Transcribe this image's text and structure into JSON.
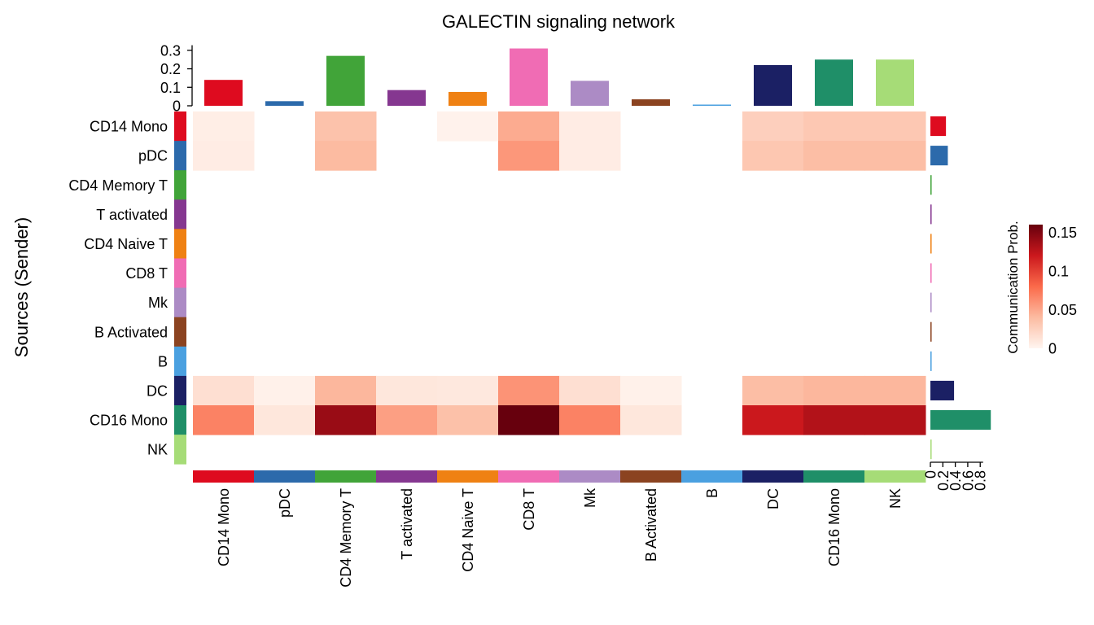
{
  "chart_data": {
    "type": "heatmap",
    "title": "GALECTIN signaling network",
    "ylabel": "Sources (Sender)",
    "legend_title": "Communication Prob.",
    "legend_position": "right",
    "legend_ticks": [
      "0.15",
      "0.1",
      "0.05",
      "0"
    ],
    "value_range": [
      0,
      0.16
    ],
    "colormap": [
      "#fff5f0",
      "#fcbba1",
      "#fb6a4a",
      "#cb181d",
      "#67000d"
    ],
    "rows": [
      "CD14 Mono",
      "pDC",
      "CD4 Memory T",
      "T activated",
      "CD4 Naive T",
      "CD8 T",
      "Mk",
      "B Activated",
      "B",
      "DC",
      "CD16 Mono",
      "NK"
    ],
    "columns": [
      "CD14 Mono",
      "pDC",
      "CD4 Memory T",
      "T activated",
      "CD4 Naive T",
      "CD8 T",
      "Mk",
      "B Activated",
      "B",
      "DC",
      "CD16 Mono",
      "NK"
    ],
    "group_colors": [
      "#de0b1f",
      "#2c6aab",
      "#41a439",
      "#853790",
      "#ef8113",
      "#f06cb4",
      "#ac8bc5",
      "#8b4320",
      "#4aa0e0",
      "#1b2064",
      "#1f8f68",
      "#a6dc77"
    ],
    "matrix": [
      [
        0.005,
        null,
        0.035,
        null,
        0.002,
        0.048,
        0.006,
        null,
        null,
        0.026,
        0.031,
        0.031
      ],
      [
        0.006,
        null,
        0.04,
        null,
        null,
        0.058,
        0.006,
        null,
        null,
        0.032,
        0.038,
        0.038
      ],
      [
        null,
        null,
        null,
        null,
        null,
        null,
        null,
        null,
        null,
        null,
        null,
        null
      ],
      [
        null,
        null,
        null,
        null,
        null,
        null,
        null,
        null,
        null,
        null,
        null,
        null
      ],
      [
        null,
        null,
        null,
        null,
        null,
        null,
        null,
        null,
        null,
        null,
        null,
        null
      ],
      [
        null,
        null,
        null,
        null,
        null,
        null,
        null,
        null,
        null,
        null,
        null,
        null
      ],
      [
        null,
        null,
        null,
        null,
        null,
        null,
        null,
        null,
        null,
        null,
        null,
        null
      ],
      [
        null,
        null,
        null,
        null,
        null,
        null,
        null,
        null,
        null,
        null,
        null,
        null
      ],
      [
        null,
        null,
        null,
        null,
        null,
        null,
        null,
        null,
        null,
        null,
        null,
        null
      ],
      [
        0.015,
        0.003,
        0.042,
        0.01,
        0.009,
        0.06,
        0.015,
        0.003,
        null,
        0.038,
        0.042,
        0.042
      ],
      [
        0.068,
        0.01,
        0.14,
        0.054,
        0.036,
        0.16,
        0.068,
        0.01,
        null,
        0.12,
        0.13,
        0.13
      ],
      [
        null,
        null,
        null,
        null,
        null,
        null,
        null,
        null,
        null,
        null,
        null,
        null
      ]
    ],
    "top_bars": {
      "values": [
        0.14,
        0.025,
        0.27,
        0.085,
        0.075,
        0.31,
        0.135,
        0.035,
        0.005,
        0.22,
        0.25,
        0.25
      ],
      "ylim": [
        0,
        0.33
      ],
      "ticks": [
        "0",
        "0.1",
        "0.2",
        "0.3"
      ]
    },
    "right_bars": {
      "values": [
        0.25,
        0.28,
        0.02,
        0.02,
        0.02,
        0.02,
        0.02,
        0.02,
        0.02,
        0.38,
        0.97,
        0.02
      ],
      "xlim": [
        0,
        0.98
      ],
      "ticks": [
        "0",
        "0.2",
        "0.4",
        "0.6",
        "0.8"
      ]
    }
  }
}
